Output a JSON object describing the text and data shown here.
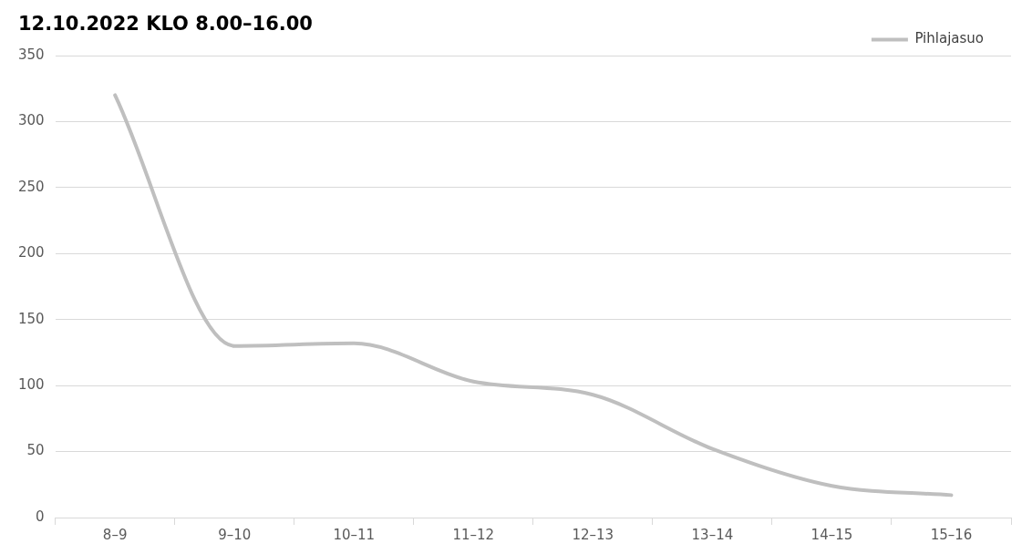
{
  "chart_data": {
    "type": "line",
    "title": "12.10.2022 KLO 8.00–16.00",
    "categories": [
      "8–9",
      "9–10",
      "10–11",
      "11–12",
      "12–13",
      "13–14",
      "14–15",
      "15–16"
    ],
    "series": [
      {
        "name": "Pihlajasuo",
        "color": "#bfbfbf",
        "values": [
          320,
          130,
          132,
          103,
          93,
          52,
          24,
          17
        ]
      }
    ],
    "ylim": [
      0,
      350
    ],
    "yticks": [
      0,
      50,
      100,
      150,
      200,
      250,
      300,
      350
    ],
    "grid": "y",
    "legend": "top right",
    "marker": "none",
    "line_style": "solid"
  }
}
